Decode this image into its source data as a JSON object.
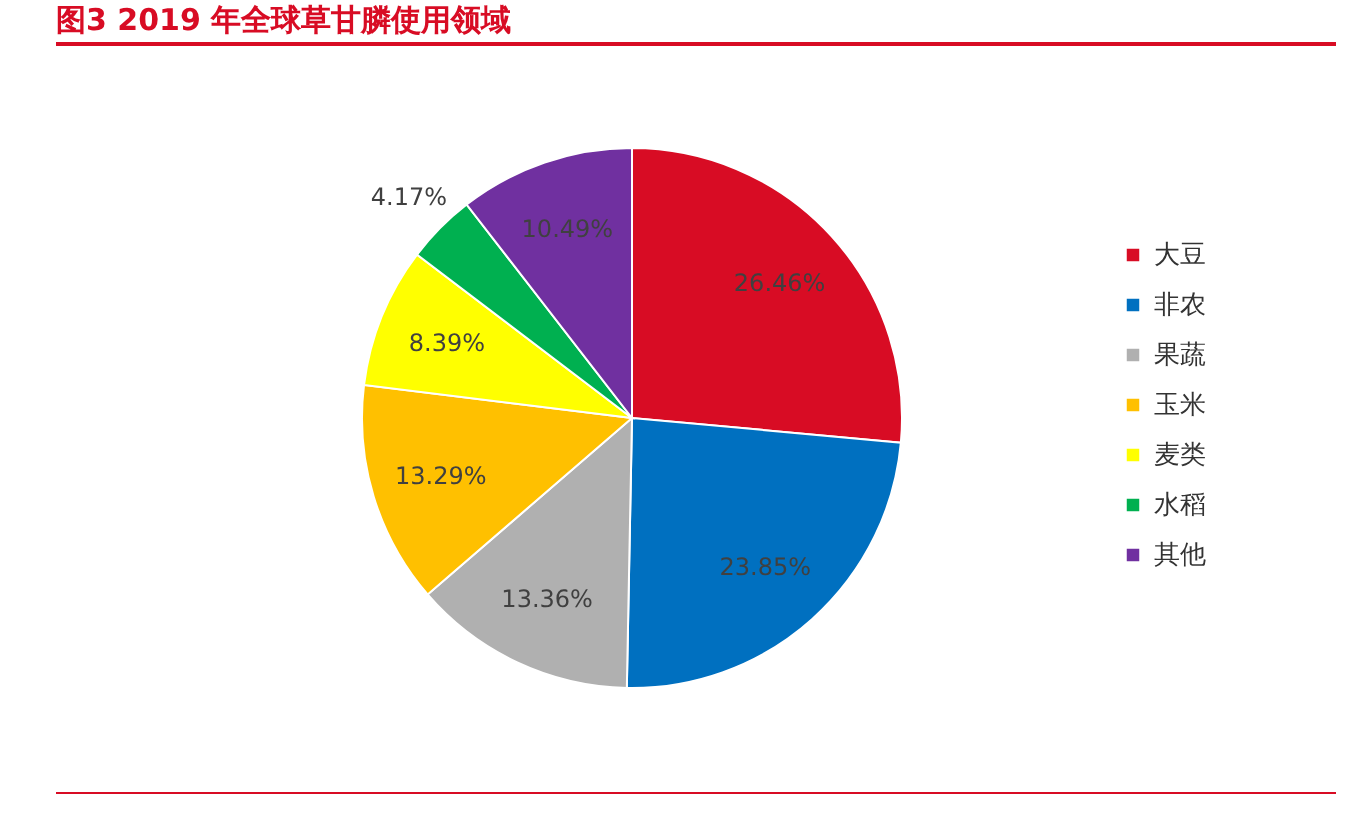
{
  "chart_data": {
    "type": "pie",
    "title": "图3  2019 年全球草甘膦使用领域",
    "categories": [
      "大豆",
      "非农",
      "果蔬",
      "玉米",
      "麦类",
      "水稻",
      "其他"
    ],
    "values": [
      26.46,
      23.85,
      13.36,
      13.29,
      8.39,
      4.17,
      10.49
    ],
    "colors": [
      "#d80c24",
      "#0070c0",
      "#b0b0b0",
      "#ffc000",
      "#ffff00",
      "#00b050",
      "#7030a0"
    ],
    "value_labels": [
      "26.46%",
      "23.85%",
      "13.36%",
      "13.29%",
      "8.39%",
      "4.17%",
      "10.49%"
    ],
    "legend": "right"
  }
}
